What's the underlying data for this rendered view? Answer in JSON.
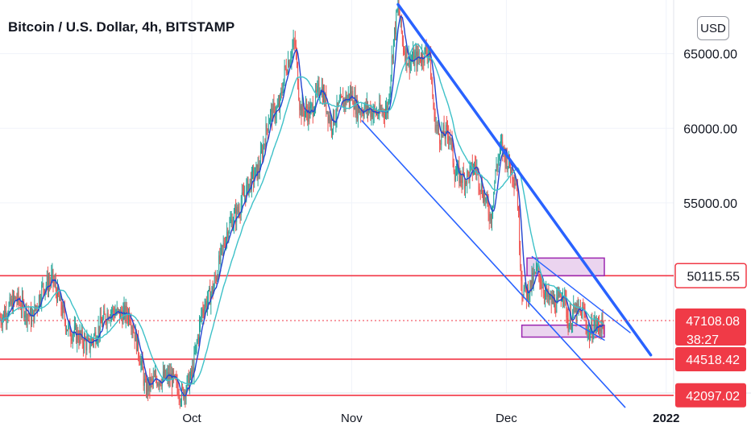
{
  "title": "Bitcoin / U.S. Dollar, 4h, BITSTAMP",
  "currency_button": "USD",
  "colors": {
    "bull": "#26a69a",
    "bear": "#ef5350",
    "trend": "#2962ff",
    "ma_fast": "#2244d0",
    "ma_slow": "#3ec1c8",
    "support": "#f23645",
    "zone": "#9c27b0",
    "grid": "#f0f3fa"
  },
  "chart_data": {
    "type": "candlestick",
    "title": "Bitcoin / U.S. Dollar, 4h, BITSTAMP",
    "x_ticks": [
      "Oct",
      "Nov",
      "Dec",
      "2022"
    ],
    "y_ticks": [
      {
        "value": 65000,
        "label": "65000.00"
      },
      {
        "value": 60000,
        "label": "60000.00"
      },
      {
        "value": 55000,
        "label": "55000.00"
      }
    ],
    "ylim": [
      38900,
      68600
    ],
    "price_labels": [
      {
        "value": 50115.55,
        "label": "50115.55",
        "style": "outline"
      },
      {
        "value": 47108.08,
        "label": "47108.08",
        "sub": "38:27",
        "style": "filled"
      },
      {
        "value": 44518.42,
        "label": "44518.42",
        "style": "filled"
      },
      {
        "value": 42097.02,
        "label": "42097.02",
        "style": "filled"
      }
    ],
    "current_price": 47108.08,
    "countdown": "38:27",
    "horizontal_levels": [
      50115.55,
      44518.42,
      42097.02
    ],
    "support_zones": [
      {
        "from": "2021-12-05",
        "to": "2021-12-20",
        "low": 50115.55,
        "high": 51300
      },
      {
        "from": "2021-12-04",
        "to": "2021-12-20",
        "low": 46000,
        "high": 46800
      }
    ],
    "trendlines": [
      {
        "name": "upper-channel",
        "from": [
          "2021-11-10",
          68300
        ],
        "to": [
          "2021-12-29",
          44800
        ]
      },
      {
        "name": "lower-channel",
        "from": [
          "2021-11-03",
          60500
        ],
        "to": [
          "2021-12-24",
          41300
        ]
      },
      {
        "name": "inner-resistance",
        "from": [
          "2021-12-06",
          51400
        ],
        "to": [
          "2021-12-25",
          46300
        ]
      },
      {
        "name": "inner-support",
        "from": [
          "2021-12-14",
          47000
        ],
        "to": [
          "2021-12-20",
          45800
        ]
      }
    ],
    "price_path": [
      [
        "2021-08-25",
        47300
      ],
      [
        "2021-08-28",
        48600
      ],
      [
        "2021-08-31",
        47200
      ],
      [
        "2021-09-02",
        49300
      ],
      [
        "2021-09-04",
        49900
      ],
      [
        "2021-09-07",
        46500
      ],
      [
        "2021-09-09",
        46100
      ],
      [
        "2021-09-11",
        45400
      ],
      [
        "2021-09-12",
        46000
      ],
      [
        "2021-09-15",
        47800
      ],
      [
        "2021-09-17",
        47500
      ],
      [
        "2021-09-19",
        47600
      ],
      [
        "2021-09-21",
        44600
      ],
      [
        "2021-09-22",
        42500
      ],
      [
        "2021-09-24",
        43200
      ],
      [
        "2021-09-27",
        43300
      ],
      [
        "2021-09-29",
        42100
      ],
      [
        "2021-10-01",
        43400
      ],
      [
        "2021-10-03",
        47800
      ],
      [
        "2021-10-05",
        49100
      ],
      [
        "2021-10-08",
        53300
      ],
      [
        "2021-10-10",
        54500
      ],
      [
        "2021-10-12",
        56200
      ],
      [
        "2021-10-14",
        57300
      ],
      [
        "2021-10-16",
        60800
      ],
      [
        "2021-10-18",
        61400
      ],
      [
        "2021-10-19",
        63800
      ],
      [
        "2021-10-21",
        65800
      ],
      [
        "2021-10-22",
        61300
      ],
      [
        "2021-10-24",
        61000
      ],
      [
        "2021-10-26",
        62900
      ],
      [
        "2021-10-28",
        60300
      ],
      [
        "2021-10-30",
        61700
      ],
      [
        "2021-11-01",
        62300
      ],
      [
        "2021-11-02",
        61300
      ],
      [
        "2021-11-04",
        61300
      ],
      [
        "2021-11-06",
        61000
      ],
      [
        "2021-11-08",
        61300
      ],
      [
        "2021-11-09",
        65500
      ],
      [
        "2021-11-10",
        68300
      ],
      [
        "2021-11-11",
        65500
      ],
      [
        "2021-11-12",
        64500
      ],
      [
        "2021-11-14",
        64700
      ],
      [
        "2021-11-16",
        65300
      ],
      [
        "2021-11-17",
        60700
      ],
      [
        "2021-11-18",
        59500
      ],
      [
        "2021-11-20",
        59700
      ],
      [
        "2021-11-21",
        57000
      ],
      [
        "2021-11-23",
        56600
      ],
      [
        "2021-11-25",
        57500
      ],
      [
        "2021-11-26",
        56200
      ],
      [
        "2021-11-28",
        54000
      ],
      [
        "2021-11-29",
        57300
      ],
      [
        "2021-11-30",
        58800
      ],
      [
        "2021-12-01",
        58000
      ],
      [
        "2021-12-02",
        57200
      ],
      [
        "2021-12-03",
        56300
      ],
      [
        "2021-12-04",
        49200
      ],
      [
        "2021-12-05",
        48900
      ],
      [
        "2021-12-07",
        50500
      ],
      [
        "2021-12-09",
        48500
      ],
      [
        "2021-12-11",
        48200
      ],
      [
        "2021-12-12",
        49300
      ],
      [
        "2021-12-13",
        46900
      ],
      [
        "2021-12-14",
        47600
      ],
      [
        "2021-12-16",
        47700
      ],
      [
        "2021-12-17",
        46100
      ],
      [
        "2021-12-18",
        46800
      ],
      [
        "2021-12-19",
        46700
      ],
      [
        "2021-12-20",
        47108
      ]
    ],
    "moving_averages": [
      {
        "period": "fast",
        "color_key": "ma_fast"
      },
      {
        "period": "slow",
        "color_key": "ma_slow"
      }
    ]
  }
}
